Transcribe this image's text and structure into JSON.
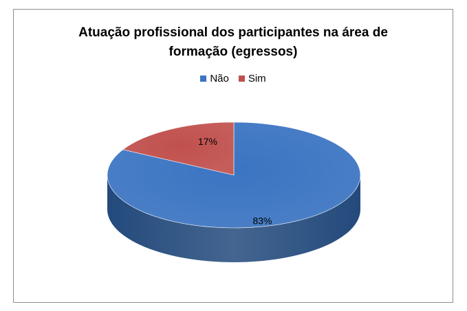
{
  "chart_data": {
    "type": "pie",
    "title": "Atuação profissional dos participantes na área de formação (egressos)",
    "title_lines": [
      "Atuação profissional dos participantes na área de",
      "formação (egressos)"
    ],
    "categories": [
      "Não",
      "Sim"
    ],
    "values": [
      83,
      17
    ],
    "data_labels": [
      "83%",
      "17%"
    ],
    "colors": [
      "#3b74c2",
      "#c0504d"
    ],
    "side_colors": [
      "#234a7c",
      "#7a2b28"
    ],
    "legend_position": "top",
    "style": "3d-pie"
  }
}
